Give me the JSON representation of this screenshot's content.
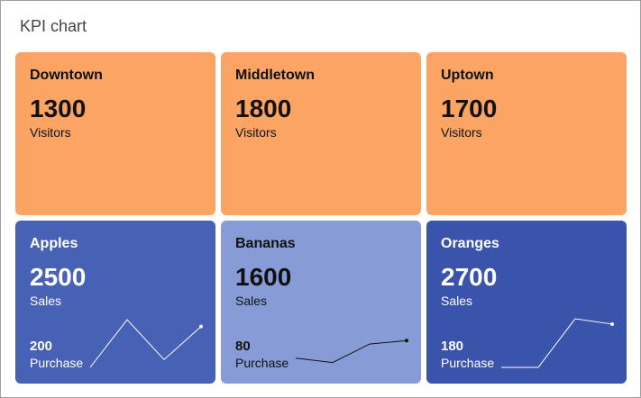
{
  "title": "KPI chart",
  "colors": {
    "orange": "#FBA463",
    "blue": "#4762B4",
    "light_blue": "#879CD6",
    "dark_blue": "#3A54AB"
  },
  "cards": [
    {
      "name": "Downtown",
      "value": "1300",
      "unit": "Visitors",
      "bg": "#FBA463",
      "fg": "#111111"
    },
    {
      "name": "Middletown",
      "value": "1800",
      "unit": "Visitors",
      "bg": "#FBA463",
      "fg": "#111111"
    },
    {
      "name": "Uptown",
      "value": "1700",
      "unit": "Visitors",
      "bg": "#FBA463",
      "fg": "#111111"
    },
    {
      "name": "Apples",
      "value": "2500",
      "unit": "Sales",
      "sub_value": "200",
      "sub_unit": "Purchase",
      "bg": "#4762B4",
      "fg": "#ffffff",
      "sparkline": [
        0,
        0.98,
        0.16,
        0.84
      ]
    },
    {
      "name": "Bananas",
      "value": "1600",
      "unit": "Sales",
      "sub_value": "80",
      "sub_unit": "Purchase",
      "bg": "#879CD6",
      "fg": "#111111",
      "sparkline": [
        0.19,
        0.1,
        0.48,
        0.55
      ]
    },
    {
      "name": "Oranges",
      "value": "2700",
      "unit": "Sales",
      "sub_value": "180",
      "sub_unit": "Purchase",
      "bg": "#3A54AB",
      "fg": "#ffffff",
      "sparkline": [
        0,
        0,
        1,
        0.89
      ]
    }
  ]
}
